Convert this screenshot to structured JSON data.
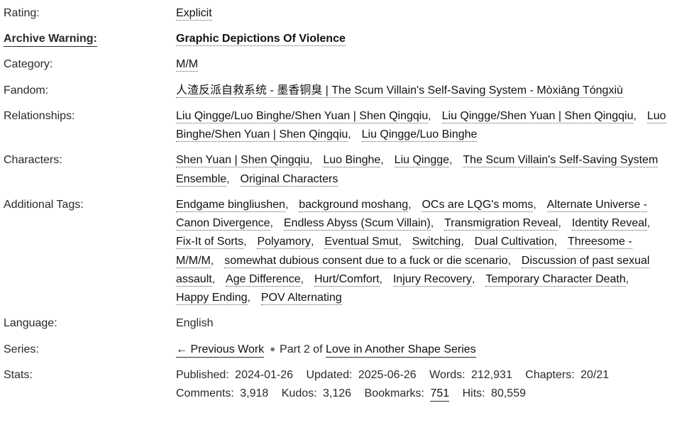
{
  "page": {
    "background": "#ffffff",
    "text_color": "#2a2a2a",
    "link_color": "#111111",
    "warning_emphasis_color": "#2a2a2a",
    "bullet_color": "#757575",
    "tag_separator": ",",
    "bullet_glyph": "●"
  },
  "work_meta": {
    "rows": [
      {
        "id": "rating",
        "label": "Rating:",
        "type": "tags",
        "tags": [
          "Explicit"
        ]
      },
      {
        "id": "archive-warning",
        "label": "Archive Warning:",
        "type": "tags",
        "emphasis": true,
        "tags": [
          "Graphic Depictions Of Violence"
        ]
      },
      {
        "id": "category",
        "label": "Category:",
        "type": "tags",
        "tags": [
          "M/M"
        ]
      },
      {
        "id": "fandom",
        "label": "Fandom:",
        "type": "tags",
        "tags": [
          "人渣反派自救系统 - 墨香铜臭 | The Scum Villain's Self-Saving System - Mòxiāng Tóngxiù"
        ]
      },
      {
        "id": "relationships",
        "label": "Relationships:",
        "type": "tags",
        "tags": [
          "Liu Qingge/Luo Binghe/Shen Yuan | Shen Qingqiu",
          "Liu Qingge/Shen Yuan | Shen Qingqiu",
          "Luo Binghe/Shen Yuan | Shen Qingqiu",
          "Liu Qingge/Luo Binghe"
        ]
      },
      {
        "id": "characters",
        "label": "Characters:",
        "type": "tags",
        "tags": [
          "Shen Yuan | Shen Qingqiu",
          "Luo Binghe",
          "Liu Qingge",
          "The Scum Villain's Self-Saving System Ensemble",
          "Original Characters"
        ]
      },
      {
        "id": "additional-tags",
        "label": "Additional Tags:",
        "type": "tags",
        "tags": [
          "Endgame bingliushen",
          "background moshang",
          "OCs are LQG's moms",
          "Alternate Universe - Canon Divergence",
          "Endless Abyss (Scum Villain)",
          "Transmigration Reveal",
          "Identity Reveal",
          "Fix-It of Sorts",
          "Polyamory",
          "Eventual Smut",
          "Switching",
          "Dual Cultivation",
          "Threesome - M/M/M",
          "somewhat dubious consent due to a fuck or die scenario",
          "Discussion of past sexual assault",
          "Age Difference",
          "Hurt/Comfort",
          "Injury Recovery",
          "Temporary Character Death",
          "Happy Ending",
          "POV Alternating"
        ]
      },
      {
        "id": "language",
        "label": "Language:",
        "type": "text",
        "text": "English"
      },
      {
        "id": "series",
        "label": "Series:",
        "type": "series",
        "previous_work_label": "← Previous Work",
        "part_text": "Part 2 of",
        "series_link_label": "Love in Another Shape Series"
      },
      {
        "id": "stats",
        "label": "Stats:",
        "type": "stats",
        "stats": [
          {
            "label": "Published:",
            "value": "2024-01-26",
            "link": false
          },
          {
            "label": "Updated:",
            "value": "2025-06-26",
            "link": false
          },
          {
            "label": "Words:",
            "value": "212,931",
            "link": false
          },
          {
            "label": "Chapters:",
            "value": "20/21",
            "link": false
          },
          {
            "label": "Comments:",
            "value": "3,918",
            "link": false
          },
          {
            "label": "Kudos:",
            "value": "3,126",
            "link": false
          },
          {
            "label": "Bookmarks:",
            "value": "751",
            "link": true
          },
          {
            "label": "Hits:",
            "value": "80,559",
            "link": false
          }
        ]
      }
    ]
  }
}
